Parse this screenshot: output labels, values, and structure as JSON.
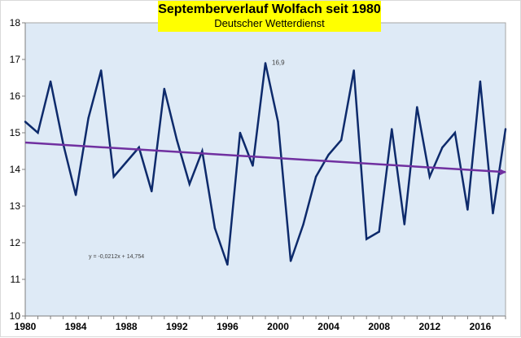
{
  "chart_data": {
    "type": "line",
    "title": "Septemberverlauf Wolfach seit 1980",
    "subtitle": "Deutscher Wetterdienst",
    "x": [
      1980,
      1981,
      1982,
      1983,
      1984,
      1985,
      1986,
      1987,
      1988,
      1989,
      1990,
      1991,
      1992,
      1993,
      1994,
      1995,
      1996,
      1997,
      1998,
      1999,
      2000,
      2001,
      2002,
      2003,
      2004,
      2005,
      2006,
      2007,
      2008,
      2009,
      2010,
      2011,
      2012,
      2013,
      2014,
      2015,
      2016,
      2017,
      2018
    ],
    "series": [
      {
        "values": [
          15.3,
          15.0,
          16.4,
          14.7,
          13.3,
          15.4,
          16.7,
          13.8,
          14.2,
          14.6,
          13.4,
          16.2,
          14.8,
          13.6,
          14.5,
          12.4,
          11.4,
          15.0,
          14.1,
          16.9,
          15.3,
          11.5,
          12.5,
          13.8,
          14.4,
          14.8,
          16.7,
          12.1,
          12.3,
          15.1,
          12.5,
          15.7,
          13.8,
          14.6,
          15.0,
          12.9,
          16.4,
          12.8,
          15.1
        ],
        "color": "#0d2a6b"
      }
    ],
    "trendline": {
      "slope": -0.0212,
      "intercept": 14.754,
      "equation": "y = -0,0212x + 14,754",
      "color": "#7030a0"
    },
    "annotations": [
      {
        "x": 1999,
        "y": 16.9,
        "text": "16,9"
      }
    ],
    "xticks": [
      1980,
      1984,
      1988,
      1992,
      1996,
      2000,
      2004,
      2008,
      2012,
      2016
    ],
    "yticks": [
      10,
      11,
      12,
      13,
      14,
      15,
      16,
      17,
      18
    ],
    "xlim": [
      1980,
      2018
    ],
    "ylim": [
      10,
      18
    ],
    "grid": false,
    "plot_background": "#deeaf6"
  }
}
